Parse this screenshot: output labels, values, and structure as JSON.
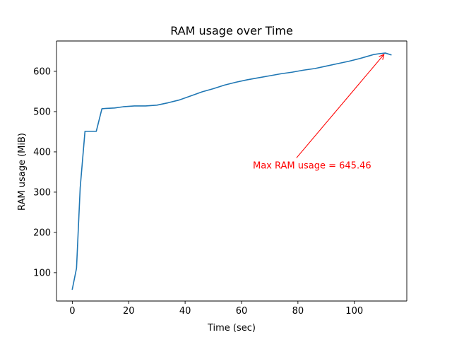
{
  "chart_data": {
    "type": "line",
    "title": "RAM usage over Time",
    "xlabel": "Time (sec)",
    "ylabel": "RAM usage (MiB)",
    "xlim": [
      -5.6,
      118.6
    ],
    "ylim": [
      29.6,
      675.4
    ],
    "x_ticks": [
      0,
      20,
      40,
      60,
      80,
      100
    ],
    "y_ticks": [
      100,
      200,
      300,
      400,
      500,
      600
    ],
    "grid": false,
    "series": [
      {
        "color": "#1f77b4",
        "x": [
          0,
          1.5,
          2.8,
          4.5,
          6,
          8.5,
          10.5,
          12,
          15,
          18,
          22,
          26,
          30,
          34,
          38,
          42,
          46,
          50,
          54,
          58,
          62,
          66,
          70,
          74,
          78,
          82,
          86,
          90,
          94,
          98,
          102,
          105,
          107,
          109,
          111,
          113
        ],
        "y": [
          59,
          111,
          311,
          451,
          451,
          451,
          507,
          508,
          509,
          512,
          514,
          514,
          516,
          522,
          529,
          539,
          549,
          557,
          566,
          573,
          579,
          584,
          589,
          594,
          598,
          603,
          607,
          613,
          619,
          625,
          632,
          638,
          642,
          644,
          645.46,
          641
        ]
      }
    ],
    "annotation": {
      "text": "Max RAM usage = 645.46",
      "color": "#ff0000",
      "text_x": 85,
      "text_y": 350,
      "arrow_to_x": 110.5,
      "arrow_to_y": 645.46
    }
  }
}
